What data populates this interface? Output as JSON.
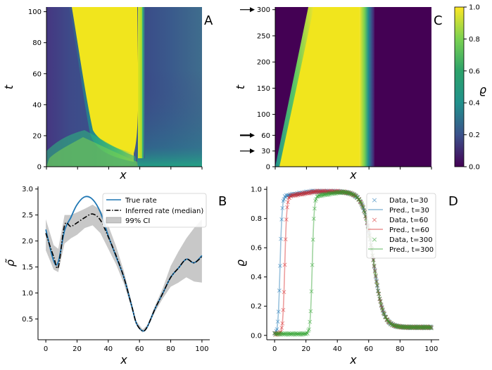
{
  "chart_data": [
    {
      "panel": "A",
      "type": "heatmap",
      "xlabel": "x",
      "ylabel": "t",
      "ylim": [
        0,
        103
      ],
      "yticks": [
        0,
        20,
        40,
        60,
        80,
        100
      ],
      "xticks_labeled": false
    },
    {
      "panel": "C",
      "type": "heatmap",
      "xlabel": "x",
      "ylabel": "t",
      "ylim": [
        0,
        305
      ],
      "yticks": [
        0,
        30,
        60,
        100,
        150,
        200,
        250,
        300
      ],
      "xticks_labeled": false,
      "arrow_markers_at_t": [
        30,
        60,
        300
      ],
      "colorbar": {
        "label": "ϱ",
        "range": [
          0.0,
          1.0
        ],
        "ticks": [
          "0.0",
          "0.2",
          "0.4",
          "0.6",
          "0.8",
          "1.0"
        ]
      }
    },
    {
      "panel": "B",
      "type": "line",
      "xlabel": "x",
      "ylabel": "ρ̃",
      "xlim": [
        -5,
        105
      ],
      "ylim": [
        0.1,
        3.05
      ],
      "xticks": [
        0,
        20,
        40,
        60,
        80,
        100
      ],
      "yticks": [
        "0.5",
        "1.0",
        "1.5",
        "2.0",
        "2.5",
        "3.0"
      ],
      "x": [
        0,
        5,
        8,
        12,
        16,
        20,
        25,
        30,
        35,
        40,
        45,
        50,
        55,
        58,
        62,
        65,
        70,
        75,
        80,
        85,
        90,
        95,
        100
      ],
      "series": [
        {
          "name": "True rate",
          "color": "#1f77b4",
          "style": "solid",
          "values": [
            2.22,
            1.62,
            1.6,
            2.2,
            2.45,
            2.7,
            2.85,
            2.8,
            2.55,
            2.1,
            1.7,
            1.3,
            0.75,
            0.42,
            0.27,
            0.35,
            0.7,
            1.0,
            1.3,
            1.48,
            1.65,
            1.58,
            1.72
          ]
        },
        {
          "name": "Inferred rate (median)",
          "color": "#000000",
          "style": "dashdot",
          "values": [
            2.15,
            1.7,
            1.5,
            2.3,
            2.28,
            2.35,
            2.45,
            2.52,
            2.4,
            2.08,
            1.72,
            1.3,
            0.75,
            0.42,
            0.27,
            0.35,
            0.7,
            1.0,
            1.3,
            1.48,
            1.65,
            1.58,
            1.7
          ]
        },
        {
          "name": "99% CI",
          "color": "#c8c8c8",
          "style": "band",
          "upper": [
            2.42,
            1.92,
            1.85,
            2.5,
            2.5,
            2.55,
            2.62,
            2.7,
            2.6,
            2.3,
            1.9,
            1.42,
            0.82,
            0.46,
            0.3,
            0.38,
            0.76,
            1.1,
            1.52,
            1.8,
            2.05,
            2.25,
            2.42
          ],
          "lower": [
            1.82,
            1.45,
            1.4,
            1.95,
            2.05,
            2.12,
            2.25,
            2.3,
            2.15,
            1.85,
            1.55,
            1.18,
            0.7,
            0.38,
            0.24,
            0.32,
            0.64,
            0.9,
            1.12,
            1.2,
            1.3,
            1.22,
            1.2
          ]
        }
      ]
    },
    {
      "panel": "D",
      "type": "scatter",
      "xlabel": "x",
      "ylabel": "ϱ",
      "xlim": [
        -5,
        105
      ],
      "ylim": [
        -0.03,
        1.02
      ],
      "xticks": [
        0,
        20,
        40,
        60,
        80,
        100
      ],
      "yticks": [
        "0.0",
        "0.2",
        "0.4",
        "0.6",
        "0.8",
        "1.0"
      ],
      "series": [
        {
          "name": "Data, t=30",
          "pred_name": "Pred., t=30",
          "color": "#1f77b4",
          "front": 3.5
        },
        {
          "name": "Data, t=60",
          "pred_name": "Pred., t=60",
          "color": "#d62728",
          "front": 6.5
        },
        {
          "name": "Data, t=300",
          "pred_name": "Pred., t=300",
          "color": "#2ca02c",
          "front": 24
        }
      ],
      "back_front_x": 63
    }
  ]
}
